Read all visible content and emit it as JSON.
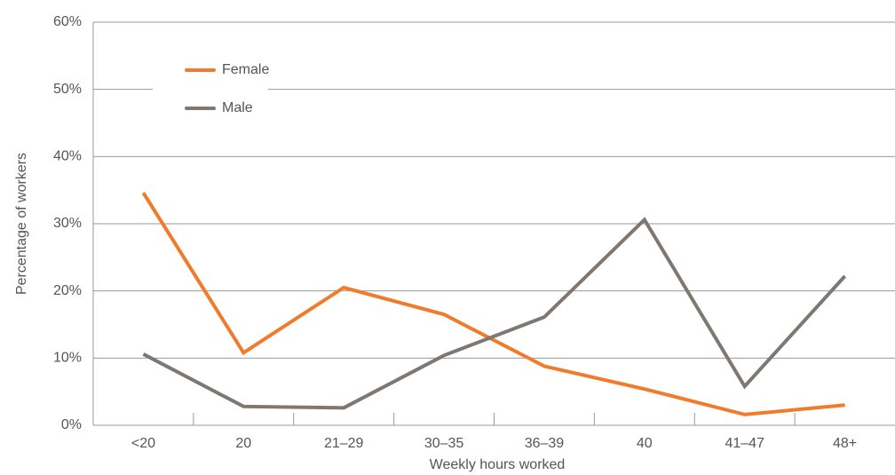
{
  "chart_data": {
    "type": "line",
    "x_label": "Weekly hours worked",
    "y_label": "Percentage of workers",
    "categories": [
      "<20",
      "20",
      "21–29",
      "30–35",
      "36–39",
      "40",
      "41–47",
      "48+"
    ],
    "series": [
      {
        "name": "Female",
        "color": "#f07b2c",
        "values": [
          34.6,
          10.8,
          20.5,
          16.5,
          8.8,
          5.4,
          1.6,
          3.0
        ]
      },
      {
        "name": "Male",
        "color": "#7f7772",
        "values": [
          10.6,
          2.8,
          2.6,
          10.4,
          16.1,
          30.6,
          5.8,
          22.2
        ]
      }
    ],
    "ylim": [
      0,
      60
    ],
    "yticks": [
      {
        "value": 0,
        "label": "0%"
      },
      {
        "value": 10,
        "label": "10%"
      },
      {
        "value": 20,
        "label": "20%"
      },
      {
        "value": 30,
        "label": "30%"
      },
      {
        "value": 40,
        "label": "40%"
      },
      {
        "value": 50,
        "label": "50%"
      },
      {
        "value": 60,
        "label": "60%"
      }
    ],
    "grid": true,
    "legend": "upper-left"
  }
}
